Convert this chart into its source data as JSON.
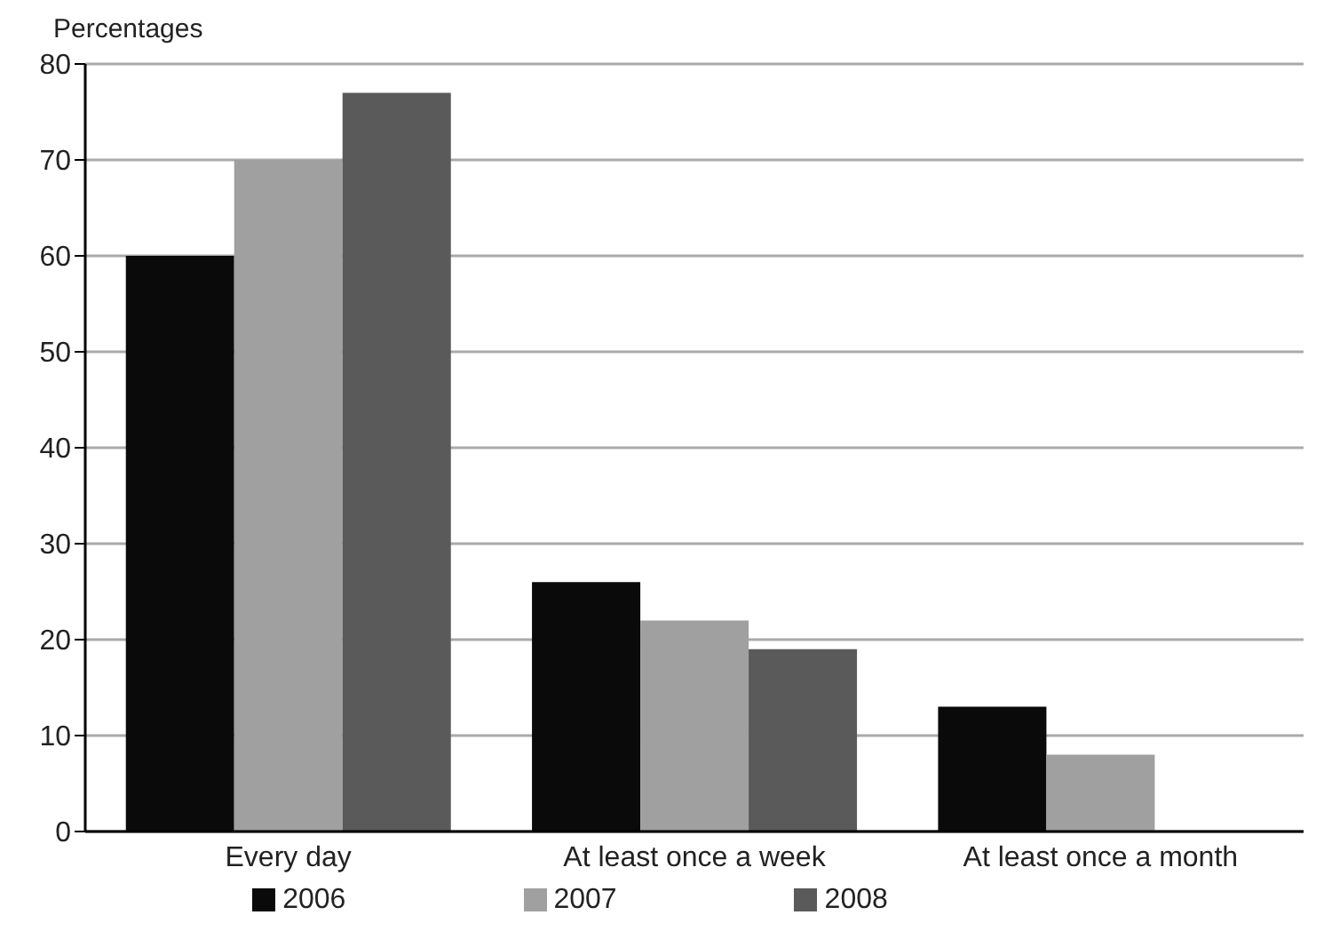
{
  "chart_data": {
    "type": "bar",
    "ylabel": "Percentages",
    "categories": [
      "Every day",
      "At least once a week",
      "At least once a month"
    ],
    "series": [
      {
        "name": "2006",
        "color": "#0a0a0a",
        "values": [
          60,
          26,
          13
        ]
      },
      {
        "name": "2007",
        "color": "#a0a0a0",
        "values": [
          70,
          22,
          8
        ]
      },
      {
        "name": "2008",
        "color": "#5a5a5a",
        "values": [
          77,
          19,
          null
        ]
      }
    ],
    "ylim": [
      0,
      80
    ],
    "yticks": [
      0,
      10,
      20,
      30,
      40,
      50,
      60,
      70,
      80
    ],
    "grid": "y",
    "legend": "bottom"
  }
}
